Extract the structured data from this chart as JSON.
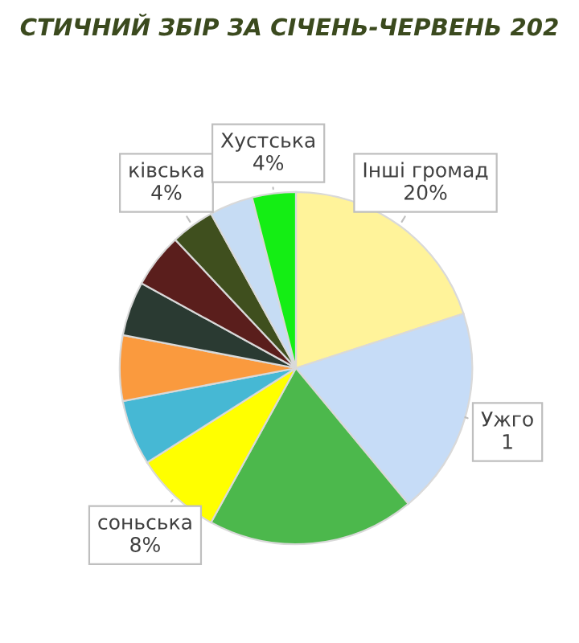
{
  "chart_data": {
    "type": "pie",
    "title": "СТИЧНИЙ ЗБІР ЗА СІЧЕНЬ-ЧЕРВЕНЬ 202",
    "categories": [
      "Інші громад",
      "Ужго\n1",
      null,
      "соньська",
      null,
      null,
      null,
      null,
      "ківська",
      null,
      "Хустська"
    ],
    "values": [
      20,
      19,
      19,
      8,
      6,
      6,
      5,
      5,
      4,
      4,
      4
    ],
    "value_labels": [
      "20%",
      null,
      null,
      "8%",
      null,
      null,
      null,
      null,
      "4%",
      null,
      "4%"
    ],
    "colors": [
      "#fff39a",
      "#c6dcf7",
      "#4cb84c",
      "#ffff00",
      "#46b8d4",
      "#fa9a3e",
      "#2a3a32",
      "#5a1e1c",
      "#3f4f1e",
      "#c6dcf4",
      "#14ee14"
    ]
  }
}
